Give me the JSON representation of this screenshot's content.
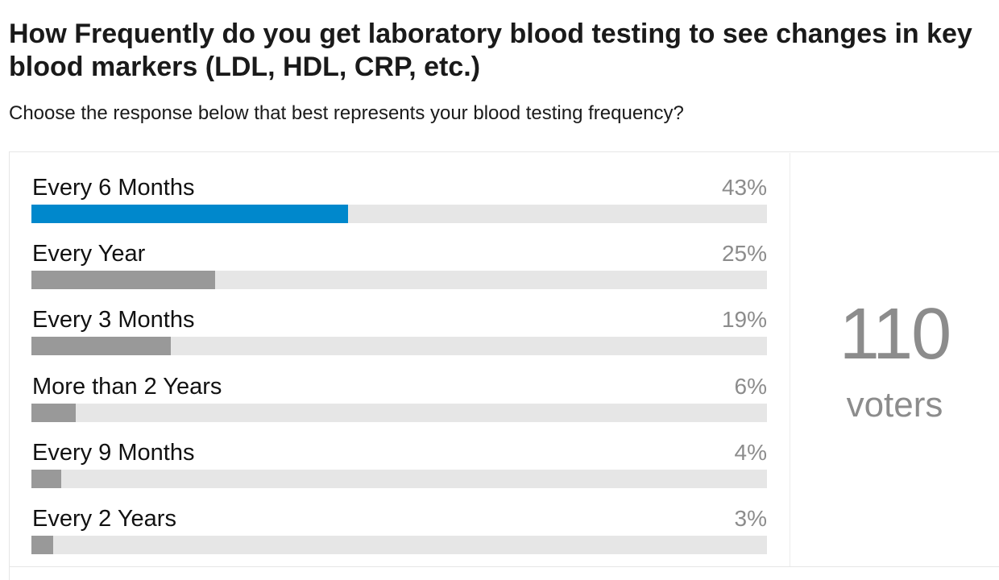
{
  "title": "How Frequently do you get laboratory blood testing to see changes in key blood markers (LDL, HDL, CRP, etc.)",
  "subtitle": "Choose the response below that best represents your blood testing frequency?",
  "voters": {
    "count": "110",
    "label": "voters"
  },
  "colors": {
    "leading_bar": "#0088cc",
    "other_bar": "#999999",
    "track": "#e6e6e6"
  },
  "chart_data": {
    "type": "bar",
    "orientation": "horizontal",
    "categories": [
      "Every 6 Months",
      "Every Year",
      "Every 3 Months",
      "More than 2 Years",
      "Every 9 Months",
      "Every 2 Years"
    ],
    "values": [
      43,
      25,
      19,
      6,
      4,
      3
    ],
    "value_labels": [
      "43%",
      "25%",
      "19%",
      "6%",
      "4%",
      "3%"
    ],
    "xlim": [
      0,
      100
    ],
    "grid": false,
    "legend": "none"
  }
}
